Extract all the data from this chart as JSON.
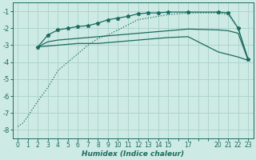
{
  "xlabel": "Humidex (Indice chaleur)",
  "bg_color": "#ceeae4",
  "grid_color": "#aed4ce",
  "line_color": "#1a6b60",
  "spine_color": "#1a6b60",
  "xlim": [
    -0.5,
    23.5
  ],
  "ylim": [
    -8.5,
    -0.5
  ],
  "xtick_positions": [
    0,
    1,
    2,
    3,
    4,
    5,
    6,
    7,
    8,
    9,
    10,
    11,
    12,
    13,
    14,
    15,
    16,
    17,
    18,
    19,
    20,
    21,
    22,
    23
  ],
  "xtick_labels": [
    "0",
    "1",
    "2",
    "3",
    "4",
    "5",
    "6",
    "7",
    "8",
    "9",
    "10",
    "11",
    "12",
    "13",
    "14",
    "15",
    "",
    "17",
    "",
    "",
    "20",
    "21",
    "22",
    "23"
  ],
  "yticks": [
    -8,
    -7,
    -6,
    -5,
    -4,
    -3,
    -2,
    -1
  ],
  "series1_x": [
    0,
    0.5,
    1,
    2,
    3,
    4,
    5,
    6,
    7,
    8,
    9,
    10,
    11,
    12,
    13,
    14,
    15,
    17,
    20,
    21,
    22,
    23
  ],
  "series1_y": [
    -7.8,
    -7.6,
    -7.2,
    -6.3,
    -5.5,
    -4.5,
    -4.0,
    -3.5,
    -3.0,
    -2.6,
    -2.4,
    -2.1,
    -1.8,
    -1.5,
    -1.4,
    -1.3,
    -1.2,
    -1.1,
    -1.1,
    -1.2,
    -2.0,
    -3.9
  ],
  "series2_x": [
    2,
    3,
    4,
    5,
    6,
    7,
    8,
    9,
    10,
    11,
    12,
    13,
    14,
    15,
    17,
    20,
    21,
    22,
    23
  ],
  "series2_y": [
    -3.1,
    -2.4,
    -2.1,
    -2.0,
    -1.9,
    -1.85,
    -1.7,
    -1.5,
    -1.4,
    -1.3,
    -1.15,
    -1.1,
    -1.1,
    -1.05,
    -1.05,
    -1.05,
    -1.1,
    -2.0,
    -3.85
  ],
  "series3_x": [
    2,
    3,
    4,
    5,
    6,
    7,
    8,
    9,
    10,
    11,
    12,
    13,
    14,
    15,
    17,
    20,
    21,
    22,
    23
  ],
  "series3_y": [
    -3.1,
    -2.8,
    -2.7,
    -2.65,
    -2.6,
    -2.55,
    -2.5,
    -2.45,
    -2.4,
    -2.35,
    -2.3,
    -2.25,
    -2.2,
    -2.15,
    -2.05,
    -2.1,
    -2.15,
    -2.3,
    -3.9
  ],
  "series4_x": [
    2,
    3,
    4,
    5,
    6,
    7,
    8,
    9,
    10,
    11,
    12,
    13,
    14,
    15,
    17,
    20,
    21,
    22,
    23
  ],
  "series4_y": [
    -3.1,
    -3.05,
    -3.0,
    -2.95,
    -2.9,
    -2.9,
    -2.9,
    -2.85,
    -2.8,
    -2.75,
    -2.7,
    -2.65,
    -2.6,
    -2.55,
    -2.5,
    -3.4,
    -3.55,
    -3.7,
    -3.9
  ],
  "s2_marker_x": [
    3,
    4,
    7,
    8,
    9,
    10,
    11,
    12,
    13,
    14,
    15,
    17,
    20,
    23
  ],
  "s2_marker_y": [
    -2.4,
    -2.1,
    -1.85,
    -1.7,
    -1.5,
    -1.4,
    -1.3,
    -1.15,
    -1.1,
    -1.1,
    -1.05,
    -1.05,
    -1.05,
    -3.85
  ]
}
